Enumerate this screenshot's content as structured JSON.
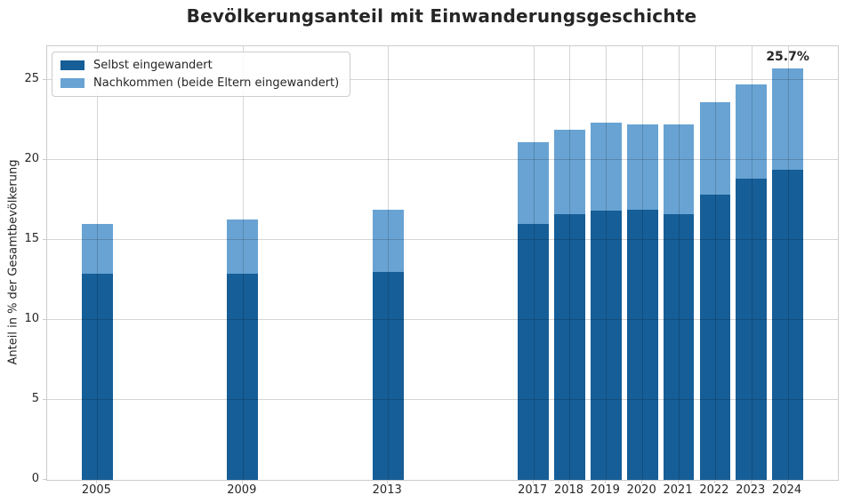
{
  "chart_data": {
    "type": "bar",
    "stacked": true,
    "title": "Bevölkerungsanteil mit Einwanderungsgeschichte",
    "ylabel": "Anteil in % der Gesamtbevölkerung",
    "xlabel": "",
    "categories": [
      "2005",
      "2009",
      "2013",
      "2017",
      "2018",
      "2019",
      "2020",
      "2021",
      "2022",
      "2023",
      "2024"
    ],
    "x_years": [
      2005,
      2009,
      2013,
      2017,
      2018,
      2019,
      2020,
      2021,
      2022,
      2023,
      2024
    ],
    "series": [
      {
        "name": "Selbst eingewandert",
        "color": "#165E97",
        "values": [
          12.9,
          12.9,
          13.0,
          16.0,
          16.6,
          16.8,
          16.9,
          16.6,
          17.8,
          18.8,
          19.4
        ]
      },
      {
        "name": "Nachkommen (beide Eltern eingewandert)",
        "color": "#68A3D3",
        "values": [
          3.1,
          3.4,
          3.9,
          5.1,
          5.3,
          5.5,
          5.3,
          5.6,
          5.8,
          5.9,
          6.3
        ]
      }
    ],
    "totals": [
      16.0,
      16.3,
      16.9,
      21.1,
      21.9,
      22.3,
      22.2,
      22.2,
      23.6,
      24.7,
      25.7
    ],
    "annotation": {
      "text": "25.7%",
      "x": 2024,
      "y": 25.7
    },
    "yticks": [
      0,
      5,
      10,
      15,
      20,
      25
    ],
    "ylim": [
      0,
      27.1
    ],
    "xlim": [
      2003.62,
      2025.38
    ],
    "bar_width_years": 0.85,
    "grid": true,
    "legend_position": "upper left",
    "colors": {
      "grid": "#cccccc",
      "spine": "#cccccc",
      "text": "#262626",
      "background": "#ffffff"
    }
  }
}
